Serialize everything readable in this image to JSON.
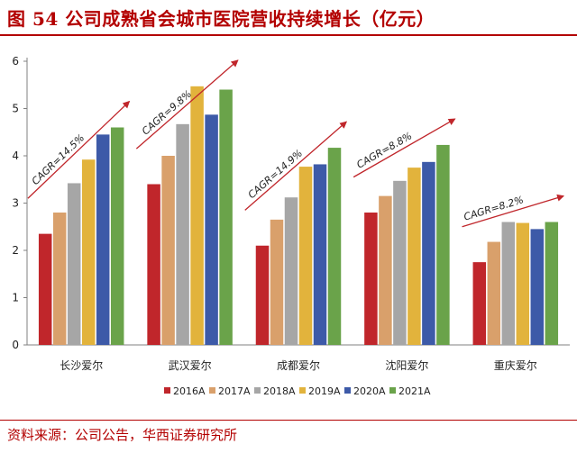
{
  "title": "图 54 公司成熟省会城市医院营收持续增长（亿元）",
  "source": "资料来源：公司公告，华西证券研究所",
  "chart_data": {
    "type": "bar",
    "categories": [
      "长沙爱尔",
      "武汉爱尔",
      "成都爱尔",
      "沈阳爱尔",
      "重庆爱尔"
    ],
    "series": [
      {
        "name": "2016A",
        "color": "#c0262b",
        "values": [
          2.35,
          3.4,
          2.1,
          2.8,
          1.75
        ]
      },
      {
        "name": "2017A",
        "color": "#d9a06b",
        "values": [
          2.8,
          4.0,
          2.65,
          3.15,
          2.18
        ]
      },
      {
        "name": "2018A",
        "color": "#a6a6a6",
        "values": [
          3.42,
          4.67,
          3.12,
          3.47,
          2.6
        ]
      },
      {
        "name": "2019A",
        "color": "#e2b33c",
        "values": [
          3.92,
          5.47,
          3.77,
          3.75,
          2.58
        ]
      },
      {
        "name": "2020A",
        "color": "#3d5aa8",
        "values": [
          4.45,
          4.87,
          3.82,
          3.87,
          2.45
        ]
      },
      {
        "name": "2021A",
        "color": "#6aa34a",
        "values": [
          4.6,
          5.4,
          4.17,
          4.23,
          2.6
        ]
      }
    ],
    "annotations": [
      "CAGR=14.5%",
      "CAGR=9.8%",
      "CAGR=14.9%",
      "CAGR=8.8%",
      "CAGR=8.2%"
    ],
    "annotation_color": "#c0262b",
    "ylim": [
      0,
      6
    ],
    "yticks": [
      0,
      1,
      2,
      3,
      4,
      5,
      6
    ],
    "xlabel": "",
    "ylabel": "",
    "grid": false,
    "legend_position": "bottom"
  }
}
